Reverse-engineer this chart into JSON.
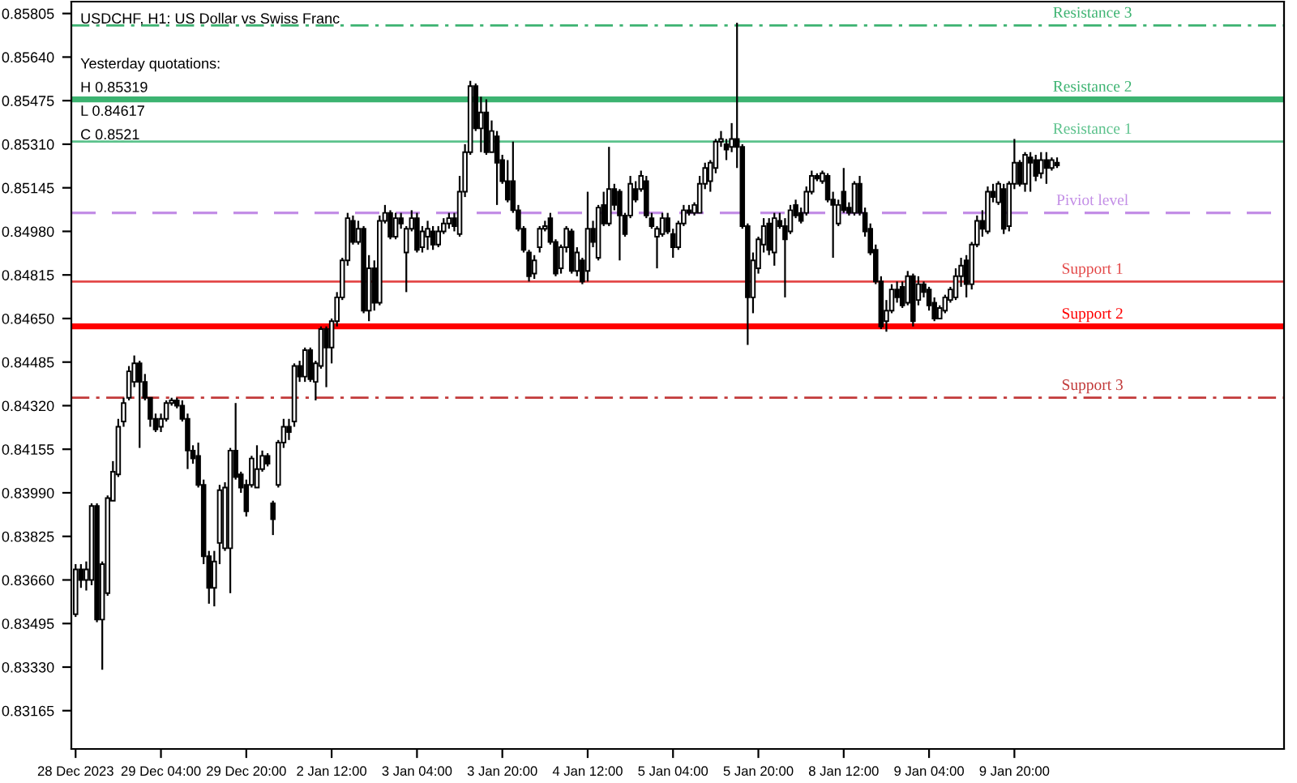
{
  "chart_data": {
    "type": "candlestick",
    "title": "USDCHF, H1: US Dollar vs Swiss Franc",
    "annotations": [
      "Yesterday quotations:",
      "H 0.85319",
      "L 0.84617",
      "C 0.8521"
    ],
    "categories": [
      "28 Dec 2023",
      null,
      null,
      null,
      null,
      null,
      null,
      null,
      null,
      null,
      null,
      null,
      null,
      null,
      null,
      null,
      "29 Dec 04:00",
      null,
      null,
      null,
      null,
      null,
      null,
      null,
      null,
      null,
      null,
      null,
      null,
      null,
      null,
      null,
      "29 Dec 20:00",
      null,
      null,
      null,
      null,
      null,
      null,
      null,
      null,
      null,
      null,
      null,
      null,
      null,
      null,
      null,
      "2 Jan 12:00",
      null,
      null,
      null,
      null,
      null,
      null,
      null,
      null,
      null,
      null,
      null,
      null,
      null,
      null,
      null,
      "3 Jan 04:00",
      null,
      null,
      null,
      null,
      null,
      null,
      null,
      null,
      null,
      null,
      null,
      null,
      null,
      null,
      null,
      "3 Jan 20:00",
      null,
      null,
      null,
      null,
      null,
      null,
      null,
      null,
      null,
      null,
      null,
      null,
      null,
      null,
      null,
      "4 Jan 12:00",
      null,
      null,
      null,
      null,
      null,
      null,
      null,
      null,
      null,
      null,
      null,
      null,
      null,
      null,
      null,
      "5 Jan 04:00",
      null,
      null,
      null,
      null,
      null,
      null,
      null,
      null,
      null,
      null,
      null,
      null,
      null,
      null,
      null,
      "5 Jan 20:00",
      null,
      null,
      null,
      null,
      null,
      null,
      null,
      null,
      null,
      null,
      null,
      null,
      null,
      null,
      null,
      "8 Jan 12:00",
      null,
      null,
      null,
      null,
      null,
      null,
      null,
      null,
      null,
      null,
      null,
      null,
      null,
      null,
      null,
      "9 Jan 04:00",
      null,
      null,
      null,
      null,
      null,
      null,
      null,
      null,
      null,
      null,
      null,
      null,
      null,
      null,
      null,
      "9 Jan 20:00",
      null,
      null,
      null,
      null,
      null,
      null,
      null,
      null
    ],
    "ohlc": [
      [
        0.8353,
        0.8372,
        0.8352,
        0.837
      ],
      [
        0.837,
        0.8372,
        0.8363,
        0.8366
      ],
      [
        0.8366,
        0.8373,
        0.8362,
        0.837
      ],
      [
        0.8366,
        0.8395,
        0.8364,
        0.8394
      ],
      [
        0.8394,
        0.8395,
        0.835,
        0.8351
      ],
      [
        0.8351,
        0.8373,
        0.8332,
        0.8372
      ],
      [
        0.8361,
        0.8398,
        0.836,
        0.8397
      ],
      [
        0.8396,
        0.8411,
        0.8396,
        0.8407
      ],
      [
        0.8406,
        0.8427,
        0.8405,
        0.8424
      ],
      [
        0.8426,
        0.8435,
        0.8424,
        0.8433
      ],
      [
        0.8435,
        0.8447,
        0.8434,
        0.8445
      ],
      [
        0.8441,
        0.8451,
        0.8439,
        0.8448
      ],
      [
        0.8448,
        0.8449,
        0.8416,
        0.8441
      ],
      [
        0.8441,
        0.8444,
        0.8434,
        0.8435
      ],
      [
        0.8435,
        0.8435,
        0.8424,
        0.8427
      ],
      [
        0.8427,
        0.8429,
        0.8422,
        0.8423
      ],
      [
        0.8424,
        0.8429,
        0.8422,
        0.8427
      ],
      [
        0.8427,
        0.8434,
        0.8426,
        0.8433
      ],
      [
        0.8433,
        0.8435,
        0.8432,
        0.8434
      ],
      [
        0.8434,
        0.8435,
        0.8431,
        0.8432
      ],
      [
        0.8432,
        0.8434,
        0.8426,
        0.8427
      ],
      [
        0.8427,
        0.8429,
        0.8408,
        0.8415
      ],
      [
        0.8415,
        0.8417,
        0.841,
        0.8412
      ],
      [
        0.8413,
        0.8418,
        0.8401,
        0.8402
      ],
      [
        0.8402,
        0.8404,
        0.8372,
        0.8375
      ],
      [
        0.8375,
        0.8377,
        0.8357,
        0.8363
      ],
      [
        0.8363,
        0.8377,
        0.8356,
        0.8373
      ],
      [
        0.838,
        0.8402,
        0.8372,
        0.84
      ],
      [
        0.8378,
        0.8403,
        0.8377,
        0.8401
      ],
      [
        0.8378,
        0.8416,
        0.8361,
        0.8415
      ],
      [
        0.8415,
        0.8433,
        0.8404,
        0.8405
      ],
      [
        0.8406,
        0.8407,
        0.8399,
        0.8401
      ],
      [
        0.8402,
        0.8404,
        0.839,
        0.8392
      ],
      [
        0.8402,
        0.8413,
        0.8401,
        0.8412
      ],
      [
        0.8401,
        0.8417,
        0.8401,
        0.8408
      ],
      [
        0.8408,
        0.8415,
        0.8407,
        0.8413
      ],
      [
        0.8413,
        0.8414,
        0.8409,
        0.841
      ],
      [
        0.8395,
        0.8396,
        0.8383,
        0.8389
      ],
      [
        0.8402,
        0.8419,
        0.8401,
        0.8418
      ],
      [
        0.8418,
        0.8427,
        0.8416,
        0.8424
      ],
      [
        0.8424,
        0.8427,
        0.8419,
        0.8422
      ],
      [
        0.8426,
        0.8448,
        0.8424,
        0.8447
      ],
      [
        0.8447,
        0.8449,
        0.8441,
        0.8443
      ],
      [
        0.8443,
        0.8454,
        0.8441,
        0.8453
      ],
      [
        0.8453,
        0.8454,
        0.8441,
        0.8442
      ],
      [
        0.8441,
        0.8449,
        0.8434,
        0.8448
      ],
      [
        0.8447,
        0.8462,
        0.8446,
        0.8461
      ],
      [
        0.8461,
        0.8462,
        0.8439,
        0.8454
      ],
      [
        0.8454,
        0.8465,
        0.8448,
        0.8464
      ],
      [
        0.8464,
        0.8475,
        0.8462,
        0.8473
      ],
      [
        0.8473,
        0.8488,
        0.8472,
        0.8487
      ],
      [
        0.8487,
        0.8505,
        0.8485,
        0.8503
      ],
      [
        0.8502,
        0.8504,
        0.8493,
        0.8494
      ],
      [
        0.8494,
        0.8502,
        0.8493,
        0.8499
      ],
      [
        0.8499,
        0.85,
        0.8467,
        0.8468
      ],
      [
        0.8468,
        0.8489,
        0.8464,
        0.8484
      ],
      [
        0.8484,
        0.8487,
        0.8468,
        0.8471
      ],
      [
        0.8471,
        0.8504,
        0.847,
        0.8502
      ],
      [
        0.8502,
        0.8508,
        0.8501,
        0.8505
      ],
      [
        0.8505,
        0.8506,
        0.8495,
        0.8496
      ],
      [
        0.8496,
        0.8505,
        0.8495,
        0.8503
      ],
      [
        0.8503,
        0.8505,
        0.8499,
        0.8501
      ],
      [
        0.849,
        0.85,
        0.8475,
        0.8499
      ],
      [
        0.8499,
        0.8506,
        0.8498,
        0.8503
      ],
      [
        0.8503,
        0.8505,
        0.849,
        0.8491
      ],
      [
        0.8492,
        0.85,
        0.849,
        0.8498
      ],
      [
        0.8496,
        0.8502,
        0.8491,
        0.8499
      ],
      [
        0.8498,
        0.85,
        0.8491,
        0.8493
      ],
      [
        0.8493,
        0.85,
        0.8492,
        0.8498
      ],
      [
        0.8498,
        0.8503,
        0.8497,
        0.8501
      ],
      [
        0.8501,
        0.8505,
        0.8499,
        0.8503
      ],
      [
        0.8503,
        0.8505,
        0.8498,
        0.85
      ],
      [
        0.8497,
        0.8519,
        0.8496,
        0.8513
      ],
      [
        0.8513,
        0.8531,
        0.8511,
        0.8528
      ],
      [
        0.8528,
        0.8555,
        0.8527,
        0.8553
      ],
      [
        0.8553,
        0.8554,
        0.8536,
        0.8537
      ],
      [
        0.8537,
        0.8549,
        0.8528,
        0.8543
      ],
      [
        0.8543,
        0.8548,
        0.8527,
        0.8528
      ],
      [
        0.8528,
        0.854,
        0.8528,
        0.8536
      ],
      [
        0.8534,
        0.8536,
        0.8508,
        0.8524
      ],
      [
        0.8525,
        0.8527,
        0.8516,
        0.8517
      ],
      [
        0.8517,
        0.8525,
        0.8509,
        0.851
      ],
      [
        0.8517,
        0.8532,
        0.8505,
        0.8506
      ],
      [
        0.8506,
        0.8508,
        0.8498,
        0.8499
      ],
      [
        0.8499,
        0.85,
        0.849,
        0.8491
      ],
      [
        0.849,
        0.8491,
        0.8479,
        0.8481
      ],
      [
        0.8482,
        0.8489,
        0.848,
        0.8487
      ],
      [
        0.8492,
        0.85,
        0.849,
        0.8499
      ],
      [
        0.8499,
        0.8502,
        0.8498,
        0.85
      ],
      [
        0.8503,
        0.8505,
        0.8493,
        0.8494
      ],
      [
        0.8494,
        0.8495,
        0.8481,
        0.8482
      ],
      [
        0.8484,
        0.8493,
        0.8482,
        0.8492
      ],
      [
        0.8492,
        0.85,
        0.849,
        0.8499
      ],
      [
        0.8498,
        0.8499,
        0.8482,
        0.8483
      ],
      [
        0.8483,
        0.8492,
        0.8481,
        0.849
      ],
      [
        0.8487,
        0.8488,
        0.8478,
        0.8479
      ],
      [
        0.8483,
        0.8513,
        0.8479,
        0.8499
      ],
      [
        0.8499,
        0.8502,
        0.8492,
        0.8494
      ],
      [
        0.8488,
        0.8508,
        0.8487,
        0.8507
      ],
      [
        0.8508,
        0.8513,
        0.85,
        0.8501
      ],
      [
        0.8501,
        0.853,
        0.85,
        0.8514
      ],
      [
        0.8514,
        0.8516,
        0.8506,
        0.8508
      ],
      [
        0.8513,
        0.8514,
        0.8487,
        0.8504
      ],
      [
        0.8504,
        0.8505,
        0.8496,
        0.8497
      ],
      [
        0.8504,
        0.8519,
        0.8503,
        0.8516
      ],
      [
        0.8514,
        0.8517,
        0.8509,
        0.851
      ],
      [
        0.8514,
        0.8521,
        0.8513,
        0.8519
      ],
      [
        0.8517,
        0.8519,
        0.8503,
        0.8504
      ],
      [
        0.8503,
        0.8505,
        0.8499,
        0.85
      ],
      [
        0.8496,
        0.85,
        0.8484,
        0.8499
      ],
      [
        0.8497,
        0.8505,
        0.8496,
        0.8503
      ],
      [
        0.8503,
        0.8505,
        0.8497,
        0.8498
      ],
      [
        0.8497,
        0.8499,
        0.8488,
        0.8492
      ],
      [
        0.8492,
        0.8502,
        0.8491,
        0.8501
      ],
      [
        0.8501,
        0.8508,
        0.85,
        0.8506
      ],
      [
        0.8506,
        0.8508,
        0.8504,
        0.8505
      ],
      [
        0.8505,
        0.8509,
        0.8504,
        0.8508
      ],
      [
        0.8505,
        0.8519,
        0.8505,
        0.8516
      ],
      [
        0.8516,
        0.8524,
        0.8514,
        0.8522
      ],
      [
        0.8517,
        0.8525,
        0.8513,
        0.8524
      ],
      [
        0.8522,
        0.8533,
        0.852,
        0.8532
      ],
      [
        0.8532,
        0.8536,
        0.853,
        0.8533
      ],
      [
        0.8531,
        0.8533,
        0.8525,
        0.8529
      ],
      [
        0.853,
        0.8539,
        0.8528,
        0.8533
      ],
      [
        0.8533,
        0.8577,
        0.8522,
        0.853
      ],
      [
        0.853,
        0.8531,
        0.8499,
        0.85
      ],
      [
        0.85,
        0.8501,
        0.8455,
        0.8473
      ],
      [
        0.8473,
        0.849,
        0.8467,
        0.8487
      ],
      [
        0.8484,
        0.8496,
        0.8482,
        0.8495
      ],
      [
        0.8493,
        0.8503,
        0.849,
        0.85
      ],
      [
        0.8501,
        0.8503,
        0.8489,
        0.8491
      ],
      [
        0.849,
        0.8505,
        0.8485,
        0.8503
      ],
      [
        0.8502,
        0.8505,
        0.8499,
        0.85
      ],
      [
        0.85,
        0.8503,
        0.8473,
        0.8495
      ],
      [
        0.8498,
        0.8508,
        0.8497,
        0.8506
      ],
      [
        0.8508,
        0.851,
        0.8503,
        0.8504
      ],
      [
        0.8505,
        0.8507,
        0.8501,
        0.8502
      ],
      [
        0.8505,
        0.8515,
        0.8504,
        0.8513
      ],
      [
        0.8513,
        0.8521,
        0.8512,
        0.8519
      ],
      [
        0.8519,
        0.852,
        0.8517,
        0.8518
      ],
      [
        0.8517,
        0.8521,
        0.8516,
        0.852
      ],
      [
        0.8519,
        0.852,
        0.8509,
        0.851
      ],
      [
        0.851,
        0.8513,
        0.8488,
        0.8508
      ],
      [
        0.8501,
        0.851,
        0.85,
        0.8508
      ],
      [
        0.8513,
        0.8522,
        0.8505,
        0.8506
      ],
      [
        0.8507,
        0.8509,
        0.8504,
        0.8505
      ],
      [
        0.8505,
        0.8517,
        0.8504,
        0.8516
      ],
      [
        0.8516,
        0.8519,
        0.8504,
        0.8505
      ],
      [
        0.8505,
        0.8507,
        0.8496,
        0.8498
      ],
      [
        0.8499,
        0.8501,
        0.8489,
        0.849
      ],
      [
        0.8491,
        0.8493,
        0.8478,
        0.8479
      ],
      [
        0.8479,
        0.8481,
        0.8461,
        0.8462
      ],
      [
        0.8464,
        0.8472,
        0.846,
        0.8468
      ],
      [
        0.8468,
        0.8478,
        0.8467,
        0.8476
      ],
      [
        0.8476,
        0.8479,
        0.8471,
        0.8473
      ],
      [
        0.8477,
        0.8479,
        0.8469,
        0.847
      ],
      [
        0.8471,
        0.8483,
        0.847,
        0.8481
      ],
      [
        0.8481,
        0.8482,
        0.8462,
        0.8464
      ],
      [
        0.8472,
        0.8481,
        0.847,
        0.8478
      ],
      [
        0.8478,
        0.8479,
        0.8473,
        0.8475
      ],
      [
        0.8476,
        0.8477,
        0.8468,
        0.847
      ],
      [
        0.8471,
        0.8473,
        0.8464,
        0.8465
      ],
      [
        0.8465,
        0.847,
        0.8465,
        0.8469
      ],
      [
        0.8468,
        0.8474,
        0.8467,
        0.8473
      ],
      [
        0.8472,
        0.8477,
        0.8471,
        0.8476
      ],
      [
        0.8473,
        0.8484,
        0.8472,
        0.8481
      ],
      [
        0.8481,
        0.8488,
        0.8477,
        0.8485
      ],
      [
        0.8487,
        0.8489,
        0.8473,
        0.8478
      ],
      [
        0.8478,
        0.8494,
        0.8476,
        0.8493
      ],
      [
        0.8493,
        0.8504,
        0.8492,
        0.8502
      ],
      [
        0.8502,
        0.8506,
        0.8496,
        0.8499
      ],
      [
        0.8498,
        0.8515,
        0.8497,
        0.8513
      ],
      [
        0.8513,
        0.8516,
        0.8509,
        0.8511
      ],
      [
        0.8509,
        0.8517,
        0.8508,
        0.8516
      ],
      [
        0.8514,
        0.8516,
        0.8497,
        0.8499
      ],
      [
        0.85,
        0.8517,
        0.8498,
        0.8516
      ],
      [
        0.8516,
        0.8533,
        0.8514,
        0.8524
      ],
      [
        0.8524,
        0.8525,
        0.8515,
        0.8516
      ],
      [
        0.8516,
        0.8528,
        0.8513,
        0.8527
      ],
      [
        0.8526,
        0.8528,
        0.8513,
        0.8524
      ],
      [
        0.8525,
        0.8527,
        0.8517,
        0.8519
      ],
      [
        0.852,
        0.8528,
        0.8518,
        0.8525
      ],
      [
        0.8525,
        0.8528,
        0.8516,
        0.8522
      ],
      [
        0.8522,
        0.8526,
        0.8521,
        0.8525
      ],
      [
        0.8524,
        0.8526,
        0.8522,
        0.8523
      ]
    ],
    "ylim": [
      0.8302,
      0.8585
    ],
    "yticks": [
      {
        "value": 0.85805,
        "label": "0.85805"
      },
      {
        "value": 0.8564,
        "label": "0.85640"
      },
      {
        "value": 0.85475,
        "label": "0.85475"
      },
      {
        "value": 0.8531,
        "label": "0.85310"
      },
      {
        "value": 0.85145,
        "label": "0.85145"
      },
      {
        "value": 0.8498,
        "label": "0.84980"
      },
      {
        "value": 0.84815,
        "label": "0.84815"
      },
      {
        "value": 0.8465,
        "label": "0.84650"
      },
      {
        "value": 0.84485,
        "label": "0.84485"
      },
      {
        "value": 0.8432,
        "label": "0.84320"
      },
      {
        "value": 0.84155,
        "label": "0.84155"
      },
      {
        "value": 0.8399,
        "label": "0.83990"
      },
      {
        "value": 0.83825,
        "label": "0.83825"
      },
      {
        "value": 0.8366,
        "label": "0.83660"
      },
      {
        "value": 0.83495,
        "label": "0.83495"
      },
      {
        "value": 0.8333,
        "label": "0.83330"
      },
      {
        "value": 0.83165,
        "label": "0.83165"
      }
    ],
    "ref_lines": [
      {
        "axis": "y",
        "value": 0.8576,
        "label": "Resistance 3",
        "color": "#3cb371",
        "line_style": "dashdot"
      },
      {
        "axis": "y",
        "value": 0.8548,
        "label": "Resistance 2",
        "color": "#3cb371",
        "line_style": "solid"
      },
      {
        "axis": "y",
        "value": 0.8532,
        "label": "Resistance 1",
        "color": "#5cc28c",
        "line_style": "solid"
      },
      {
        "axis": "y",
        "value": 0.8505,
        "label": "Piviot level",
        "color": "#c38ee6",
        "line_style": "dashed"
      },
      {
        "axis": "y",
        "value": 0.8479,
        "label": "Support 1",
        "color": "#e34848",
        "line_style": "solid"
      },
      {
        "axis": "y",
        "value": 0.8462,
        "label": "Support 2",
        "color": "#ff0000",
        "line_style": "solid"
      },
      {
        "axis": "y",
        "value": 0.8435,
        "label": "Support 3",
        "color": "#c23a3a",
        "line_style": "dashdot"
      }
    ]
  }
}
